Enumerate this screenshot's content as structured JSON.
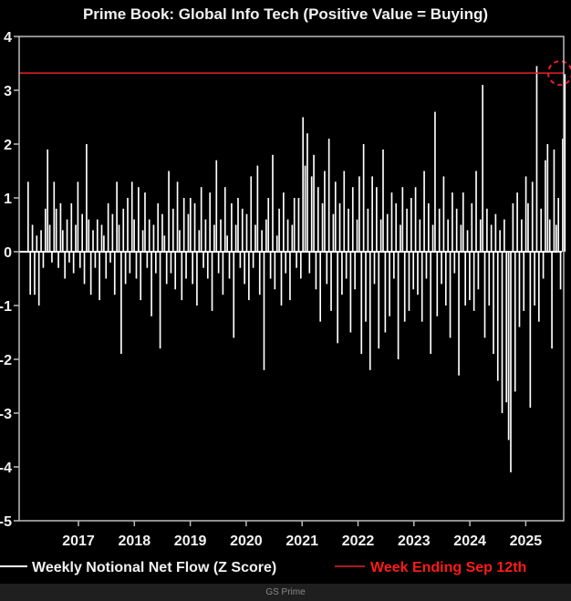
{
  "chart_data": {
    "type": "bar",
    "title": "Prime Book: Global Info Tech (Positive Value = Buying)",
    "xlabel": "",
    "ylabel": "",
    "ylim": [
      -5,
      4
    ],
    "yticks": [
      "4",
      "3",
      "2",
      "1",
      "0",
      "-1",
      "-2",
      "-3",
      "-4",
      "-5"
    ],
    "xticks": [
      "2017",
      "2018",
      "2019",
      "2020",
      "2021",
      "2022",
      "2023",
      "2024",
      "2025"
    ],
    "grid": false,
    "legend_placement": "bottom",
    "x_start": "2016-02",
    "x_step": "biweekly (approximate)",
    "series": [
      {
        "name": "Weekly Notional Net Flow (Z Score)",
        "color": "#ffffff",
        "values": [
          1.3,
          -0.8,
          0.5,
          -0.8,
          0.3,
          -1.0,
          0.4,
          -0.3,
          0.8,
          1.9,
          0.5,
          -0.2,
          1.3,
          0.8,
          -0.3,
          0.9,
          0.4,
          -0.5,
          0.6,
          -0.2,
          0.9,
          -0.4,
          0.5,
          1.3,
          -0.3,
          0.7,
          -0.6,
          2.0,
          0.6,
          -0.8,
          0.4,
          -0.3,
          0.6,
          -0.9,
          0.5,
          0.3,
          -0.5,
          0.9,
          -0.2,
          0.7,
          -0.8,
          1.3,
          0.5,
          -1.9,
          0.8,
          -0.6,
          1.0,
          -0.4,
          1.3,
          0.6,
          -0.5,
          1.2,
          -0.9,
          0.4,
          1.1,
          -0.3,
          0.6,
          -1.2,
          0.5,
          -0.4,
          0.9,
          -1.8,
          0.7,
          0.3,
          -0.6,
          1.5,
          -0.4,
          0.8,
          -0.7,
          1.3,
          0.4,
          -0.9,
          1.0,
          -0.5,
          0.7,
          1.0,
          -0.6,
          0.9,
          -1.0,
          0.4,
          1.2,
          -0.3,
          0.6,
          -0.5,
          1.1,
          -1.1,
          0.5,
          1.7,
          -0.4,
          0.6,
          -0.8,
          1.2,
          0.3,
          -0.5,
          0.9,
          -1.6,
          0.5,
          1.0,
          -0.3,
          0.8,
          -0.6,
          0.7,
          -0.9,
          1.4,
          -0.3,
          0.5,
          1.6,
          -0.8,
          0.4,
          -2.2,
          0.6,
          1.0,
          -0.5,
          1.8,
          -0.7,
          0.3,
          0.8,
          -1.0,
          1.1,
          -0.4,
          0.6,
          -0.9,
          0.5,
          1.0,
          -0.3,
          1.0,
          -0.5,
          2.5,
          1.6,
          2.2,
          -0.4,
          1.4,
          1.8,
          -0.7,
          1.2,
          -1.3,
          0.9,
          1.5,
          -0.6,
          2.1,
          -1.1,
          0.7,
          1.3,
          -1.7,
          0.9,
          -0.8,
          1.5,
          -0.5,
          0.8,
          -1.5,
          1.2,
          -0.7,
          0.6,
          1.4,
          -1.9,
          2.0,
          -1.3,
          0.8,
          -2.2,
          1.4,
          -0.6,
          1.2,
          -1.8,
          0.6,
          1.9,
          -1.5,
          0.7,
          -1.2,
          1.1,
          -0.5,
          0.9,
          -2.0,
          0.5,
          1.2,
          -1.3,
          0.8,
          -1.1,
          1.0,
          -0.7,
          1.2,
          -0.8,
          0.6,
          -1.3,
          1.5,
          -0.5,
          0.9,
          -1.9,
          0.5,
          2.6,
          -1.2,
          0.8,
          -0.6,
          1.4,
          -1.0,
          0.6,
          -1.6,
          1.1,
          -0.4,
          0.8,
          -2.3,
          0.5,
          1.1,
          -1.0,
          0.4,
          -0.9,
          0.9,
          -1.1,
          1.5,
          -0.7,
          0.6,
          3.1,
          -1.6,
          0.8,
          -1.0,
          0.5,
          -1.9,
          0.7,
          -2.4,
          0.4,
          -3.0,
          0.6,
          -2.8,
          -3.5,
          -4.1,
          0.9,
          -2.6,
          1.1,
          -1.4,
          0.6,
          -1.1,
          1.4,
          0.9,
          -2.9,
          1.3,
          -1.0,
          3.45,
          -1.3,
          0.8,
          -0.5,
          1.7,
          2.0,
          0.6,
          -1.8,
          1.9,
          0.5,
          1.0,
          -0.7,
          2.1,
          3.3
        ]
      }
    ],
    "reference_line": {
      "name": "Week Ending Sep 12th",
      "value": 3.32,
      "color": "#e8202a"
    },
    "highlight": "dashed red circle around latest value"
  },
  "footer": {
    "source": "GS Prime"
  }
}
